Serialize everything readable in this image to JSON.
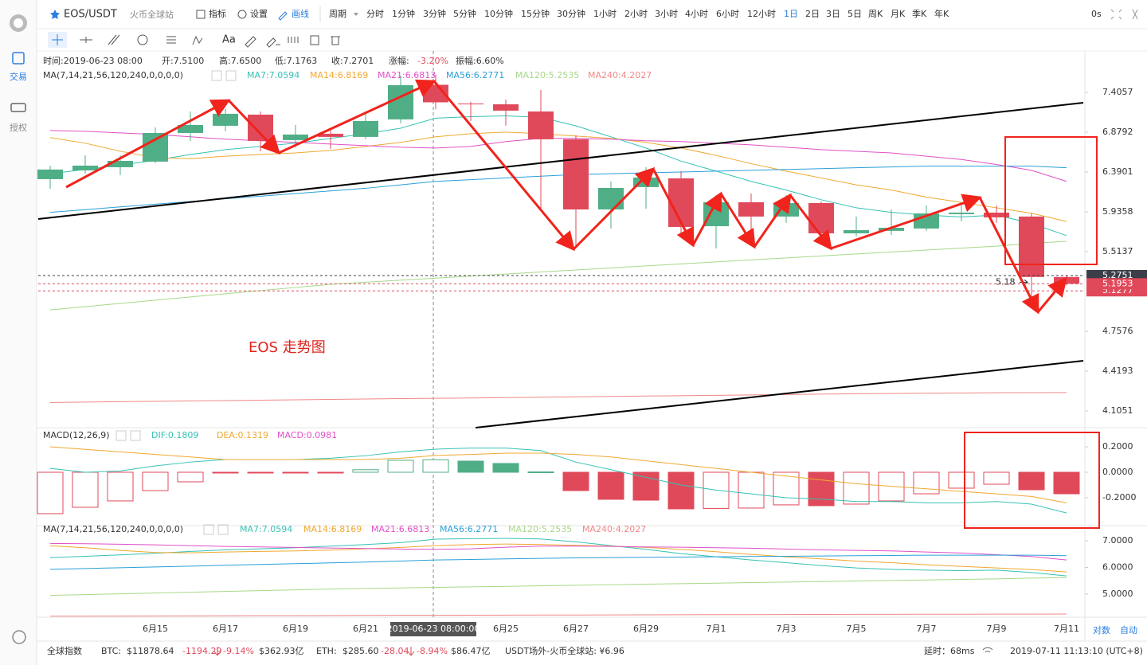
{
  "header": {
    "symbol": "EOS/USDT",
    "exchange": "火币全球站",
    "tools": [
      "指标",
      "设置",
      "画线"
    ],
    "period_label": "周期",
    "periods": [
      "分时",
      "1分钟",
      "3分钟",
      "5分钟",
      "10分钟",
      "15分钟",
      "30分钟",
      "1小时",
      "2小时",
      "3小时",
      "4小时",
      "6小时",
      "12小时",
      "1日",
      "2日",
      "3日",
      "5日",
      "周K",
      "月K",
      "季K",
      "年K"
    ],
    "active_period": "1日",
    "refresh": "0s"
  },
  "toolbar": {
    "text_tool": "Aa"
  },
  "sidebar": [
    "交易",
    "授权"
  ],
  "info": [
    "时间:2019-06-23 08:00",
    "开:7.5100",
    "高:7.6500",
    "低:7.1763",
    "收:7.2701",
    "涨幅:",
    "-3.20%",
    "振幅:6.60%"
  ],
  "chart_data": [
    {
      "type": "candlestick",
      "legend_title": "MA(7,14,21,56,120,240,0,0,0,0)",
      "annotation": "EOS 走势图",
      "log_scale": true,
      "categories": [
        null,
        null,
        null,
        "6月15",
        null,
        "6月17",
        null,
        "6月19",
        null,
        "6月21",
        null,
        null,
        null,
        "6月25",
        null,
        "6月27",
        null,
        "6月29",
        null,
        "7月1",
        null,
        "7月3",
        null,
        "7月5",
        null,
        "7月7",
        null,
        "7月9",
        null,
        "7月11"
      ],
      "crosshair_label": "2019-06-23 08:00:00",
      "open": [
        6.306,
        6.409,
        6.447,
        6.514,
        6.869,
        6.961,
        7.106,
        6.779,
        6.859,
        6.819,
        7.044,
        7.51,
        7.254,
        7.244,
        7.148,
        6.789,
        5.962,
        6.214,
        6.315,
        5.78,
        6.042,
        5.884,
        6.033,
        5.704,
        5.73,
        5.755,
        5.91,
        5.927,
        5.884,
        5.261
      ],
      "high": [
        6.466,
        6.591,
        6.591,
        6.94,
        7.148,
        7.18,
        7.148,
        6.971,
        6.92,
        7.148,
        7.638,
        7.65,
        7.276,
        7.308,
        7.438,
        6.839,
        6.278,
        6.447,
        6.4,
        6.123,
        6.141,
        6.123,
        6.051,
        5.884,
        5.962,
        6.006,
        6.006,
        6.006,
        5.918,
        5.275
      ],
      "low": [
        6.195,
        6.371,
        6.353,
        6.495,
        6.769,
        6.889,
        6.64,
        6.689,
        6.669,
        6.789,
        6.992,
        7.1763,
        7.023,
        6.961,
        5.971,
        5.563,
        5.755,
        5.971,
        5.687,
        5.547,
        5.646,
        5.815,
        5.646,
        5.671,
        5.687,
        5.73,
        5.832,
        5.815,
        5.02,
        5.18
      ],
      "close": [
        6.419,
        6.466,
        6.523,
        6.869,
        6.971,
        7.117,
        6.769,
        6.849,
        6.819,
        7.023,
        7.505,
        7.2701,
        7.244,
        7.159,
        6.789,
        5.962,
        6.204,
        6.325,
        5.772,
        6.042,
        5.884,
        6.033,
        5.704,
        5.738,
        5.763,
        5.918,
        5.927,
        5.875,
        5.261,
        5.1953
      ],
      "up_color": "#4fae86",
      "down_color": "#e0495a",
      "series": [
        {
          "name": "MA7:7.0594",
          "color": "#36c2b4",
          "values": [
            6.37,
            6.42,
            6.47,
            6.53,
            6.6,
            6.66,
            6.7,
            6.74,
            6.8,
            6.86,
            6.93,
            7.06,
            7.08,
            7.09,
            7.07,
            6.96,
            6.82,
            6.68,
            6.52,
            6.4,
            6.28,
            6.18,
            6.07,
            5.98,
            5.93,
            5.9,
            5.88,
            5.9,
            5.81,
            5.68
          ]
        },
        {
          "name": "MA14:6.8169",
          "color": "#f0a830",
          "values": [
            6.81,
            6.74,
            6.64,
            6.56,
            6.55,
            6.58,
            6.6,
            6.62,
            6.65,
            6.7,
            6.75,
            6.82,
            6.86,
            6.88,
            6.86,
            6.83,
            6.8,
            6.75,
            6.68,
            6.59,
            6.49,
            6.4,
            6.32,
            6.24,
            6.18,
            6.1,
            6.04,
            5.98,
            5.92,
            5.83
          ]
        },
        {
          "name": "MA21:6.6813",
          "color": "#e050c8",
          "values": [
            6.9,
            6.89,
            6.87,
            6.85,
            6.82,
            6.79,
            6.77,
            6.75,
            6.73,
            6.71,
            6.69,
            6.68,
            6.7,
            6.76,
            6.8,
            6.8,
            6.79,
            6.77,
            6.76,
            6.74,
            6.72,
            6.69,
            6.66,
            6.64,
            6.62,
            6.58,
            6.54,
            6.48,
            6.41,
            6.28
          ]
        },
        {
          "name": "MA56:6.2771",
          "color": "#2aa0d8",
          "values": [
            5.93,
            5.96,
            5.99,
            6.02,
            6.05,
            6.08,
            6.11,
            6.14,
            6.17,
            6.2,
            6.24,
            6.28,
            6.3,
            6.32,
            6.34,
            6.36,
            6.37,
            6.38,
            6.39,
            6.4,
            6.41,
            6.42,
            6.43,
            6.44,
            6.45,
            6.46,
            6.46,
            6.46,
            6.46,
            6.44
          ]
        },
        {
          "name": "MA120:5.2535",
          "color": "#a8d888",
          "values": [
            4.95,
            4.98,
            5.01,
            5.04,
            5.07,
            5.1,
            5.13,
            5.16,
            5.19,
            5.21,
            5.23,
            5.25,
            5.27,
            5.29,
            5.31,
            5.33,
            5.35,
            5.37,
            5.39,
            5.41,
            5.43,
            5.45,
            5.47,
            5.49,
            5.51,
            5.53,
            5.55,
            5.57,
            5.6,
            5.62
          ]
        },
        {
          "name": "MA240:4.2027",
          "color": "#f08888",
          "values": [
            4.17,
            4.173,
            4.176,
            4.179,
            4.182,
            4.185,
            4.188,
            4.191,
            4.194,
            4.197,
            4.2,
            4.2027,
            4.205,
            4.208,
            4.211,
            4.214,
            4.217,
            4.22,
            4.223,
            4.226,
            4.229,
            4.232,
            4.235,
            4.238,
            4.24,
            4.242,
            4.244,
            4.246,
            4.247,
            4.248
          ]
        }
      ],
      "price_lines": [
        {
          "value": 5.1277,
          "label": "5.1277",
          "color": "#e0495a"
        },
        {
          "value": 5.2751,
          "label": "5.2751",
          "color": "#3c3f4a"
        }
      ],
      "ylim": [
        3.98,
        7.96
      ],
      "yticks": [
        7.4057,
        6.8792,
        6.3901,
        5.9358,
        5.5137,
        4.7576,
        4.4193,
        4.1051
      ]
    },
    {
      "type": "macd",
      "title": "MACD(12,26,9)",
      "histogram_name": "MACD:0.0981",
      "values": [
        -0.325,
        -0.275,
        -0.225,
        -0.144,
        -0.075,
        -0.005,
        -0.005,
        -0.005,
        -0.005,
        0.02,
        0.094,
        0.0981,
        0.0875,
        0.069,
        0.003,
        -0.144,
        -0.2125,
        -0.219,
        -0.2875,
        -0.285,
        -0.281,
        -0.256,
        -0.2625,
        -0.25,
        -0.225,
        -0.169,
        -0.125,
        -0.094,
        -0.1375,
        -0.169
      ],
      "series": [
        {
          "name": "DIF:0.1809",
          "color": "#36c2b4",
          "values": [
            0.03,
            0.0,
            0.01,
            0.05,
            0.08,
            0.1,
            0.1,
            0.1,
            0.11,
            0.13,
            0.16,
            0.1809,
            0.19,
            0.19,
            0.17,
            0.08,
            0.02,
            -0.04,
            -0.1,
            -0.14,
            -0.17,
            -0.2,
            -0.21,
            -0.23,
            -0.23,
            -0.24,
            -0.24,
            -0.23,
            -0.25,
            -0.32
          ]
        },
        {
          "name": "DEA:0.1319",
          "color": "#f0a830",
          "values": [
            0.2,
            0.18,
            0.16,
            0.14,
            0.12,
            0.1,
            0.1,
            0.1,
            0.1,
            0.1,
            0.11,
            0.1319,
            0.14,
            0.15,
            0.15,
            0.14,
            0.12,
            0.09,
            0.06,
            0.03,
            0.0,
            -0.03,
            -0.06,
            -0.09,
            -0.11,
            -0.13,
            -0.15,
            -0.17,
            -0.19,
            -0.24
          ]
        }
      ],
      "ylim": [
        -0.419,
        0.35
      ],
      "yticks": [
        {
          "value": 0.2,
          "label": "0.2000"
        },
        {
          "value": 0,
          "label": "0.0000"
        },
        {
          "value": -0.2,
          "label": "-0.2000"
        }
      ]
    },
    {
      "type": "line",
      "ylim": [
        4.13,
        7.57
      ],
      "yticks": [
        {
          "value": 7,
          "label": "7.0000"
        },
        {
          "value": 6,
          "label": "6.0000"
        },
        {
          "value": 5,
          "label": "5.0000"
        }
      ]
    }
  ],
  "axis_modes": [
    "对数",
    "自动"
  ],
  "status_bar": {
    "label": "全球指数",
    "btc": [
      "BTC:",
      "$11878.64",
      "-1194.29",
      "-9.14%",
      "$362.93亿"
    ],
    "eth": [
      "ETH:",
      "$285.60",
      "-28.04",
      "-8.94%",
      "$86.47亿"
    ],
    "usdt": "USDT场外-火币全球站: ¥6.96",
    "latency": "延时：68ms",
    "time": "2019-07-11 11:13:10 (UTC+8)"
  }
}
